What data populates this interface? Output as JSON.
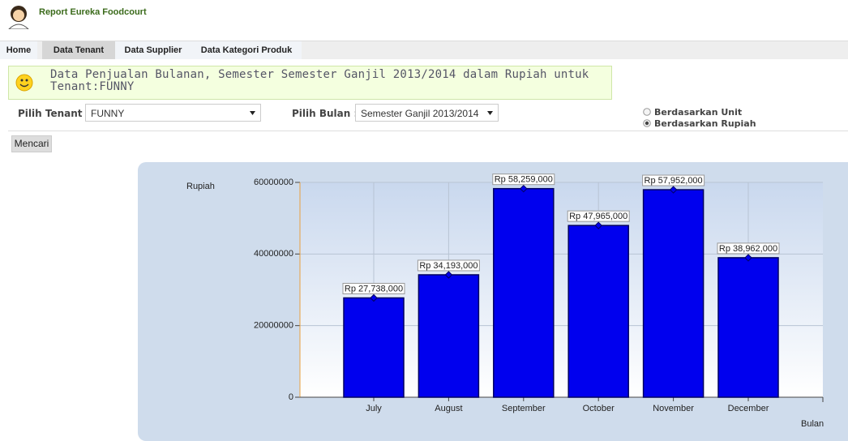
{
  "header": {
    "title": "Report Eureka Foodcourt"
  },
  "nav": [
    "Home",
    "Data Tenant",
    "Data Supplier",
    "Data Kategori Produk"
  ],
  "active_nav": 1,
  "heading": "Data Penjualan Bulanan, Semester Semester Ganjil 2013/2014 dalam Rupiah untuk Tenant:FUNNY",
  "form": {
    "tenant_label": "Pilih Tenant :",
    "tenant_value": "FUNNY",
    "month_label": "Pilih Bulan :",
    "month_value": "Semester Ganjil 2013/2014",
    "options": [
      "Berdasarkan Unit",
      "Berdasarkan Rupiah"
    ],
    "selected_option": 1,
    "button": "Mencari"
  },
  "chart_data": {
    "type": "bar",
    "y_label": "Rupiah",
    "x_label": "Bulan",
    "categories": [
      "July",
      "August",
      "September",
      "October",
      "November",
      "December"
    ],
    "values": [
      27738000,
      34193000,
      58259000,
      47965000,
      57952000,
      38962000
    ],
    "value_labels": [
      "Rp 27,738,000",
      "Rp 34,193,000",
      "Rp 58,259,000",
      "Rp 47,965,000",
      "Rp 57,952,000",
      "Rp 38,962,000"
    ],
    "color": "#0000ee",
    "ylim": [
      0,
      60000000
    ],
    "yticks": [
      0,
      20000000,
      40000000,
      60000000
    ],
    "grid": true
  }
}
